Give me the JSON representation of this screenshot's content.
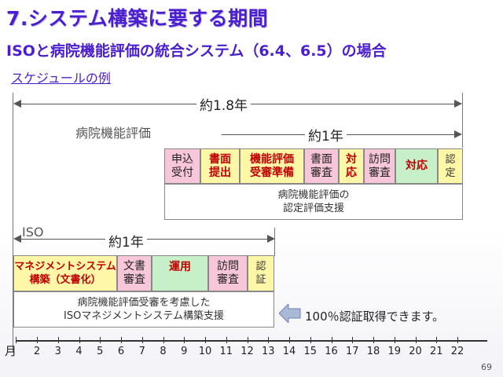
{
  "slide": {
    "title": "7.システム構築に要する期間",
    "subtitle": "ISOと病院機能評価の統合システム（6.4、6.5）の場合",
    "example_label": "スケジュールの例",
    "page_number": "69"
  },
  "overall": {
    "label": "約1.8年"
  },
  "hospital_eval": {
    "section_label": "病院機能評価",
    "period_label": "約1年",
    "steps": [
      {
        "label": "申込\n受付",
        "style": "pink"
      },
      {
        "label": "書面\n提出",
        "style": "yellow"
      },
      {
        "label": "機能評価\n受審準備",
        "style": "yellow"
      },
      {
        "label": "書面\n審査",
        "style": "pink"
      },
      {
        "label": "対\n応",
        "style": "yellow"
      },
      {
        "label": "訪問\n審査",
        "style": "pink"
      },
      {
        "label": "対応",
        "style": "green"
      },
      {
        "label": "認\n定",
        "style": "yellowplain"
      }
    ],
    "support_text": "病院機能評価の\n認定評価支援"
  },
  "iso": {
    "section_label": "ISO",
    "period_label": "約1年",
    "steps": [
      {
        "label": "マネジメントシステム\n構築（文書化）",
        "style": "yellow"
      },
      {
        "label": "文書\n審査",
        "style": "pink"
      },
      {
        "label": "運用",
        "style": "green"
      },
      {
        "label": "訪問\n審査",
        "style": "pink"
      },
      {
        "label": "認\n証",
        "style": "yellowplain"
      }
    ],
    "support_text": "病院機能評価受審を考慮した\nISOマネジメントシステム構築支援",
    "callout_text": "100％認証取得できます。"
  },
  "timeline": {
    "unit_label": "月",
    "months": [
      "2",
      "3",
      "4",
      "5",
      "6",
      "7",
      "8",
      "9",
      "10",
      "11",
      "12",
      "13",
      "14",
      "15",
      "16",
      "17",
      "18",
      "19",
      "20",
      "21",
      "22"
    ]
  },
  "colors": {
    "title": "#4b1fd0",
    "pink": "#f7c6d8",
    "yellow": "#fff7a8",
    "green": "#c8f0c8",
    "red_text": "#c00000"
  }
}
